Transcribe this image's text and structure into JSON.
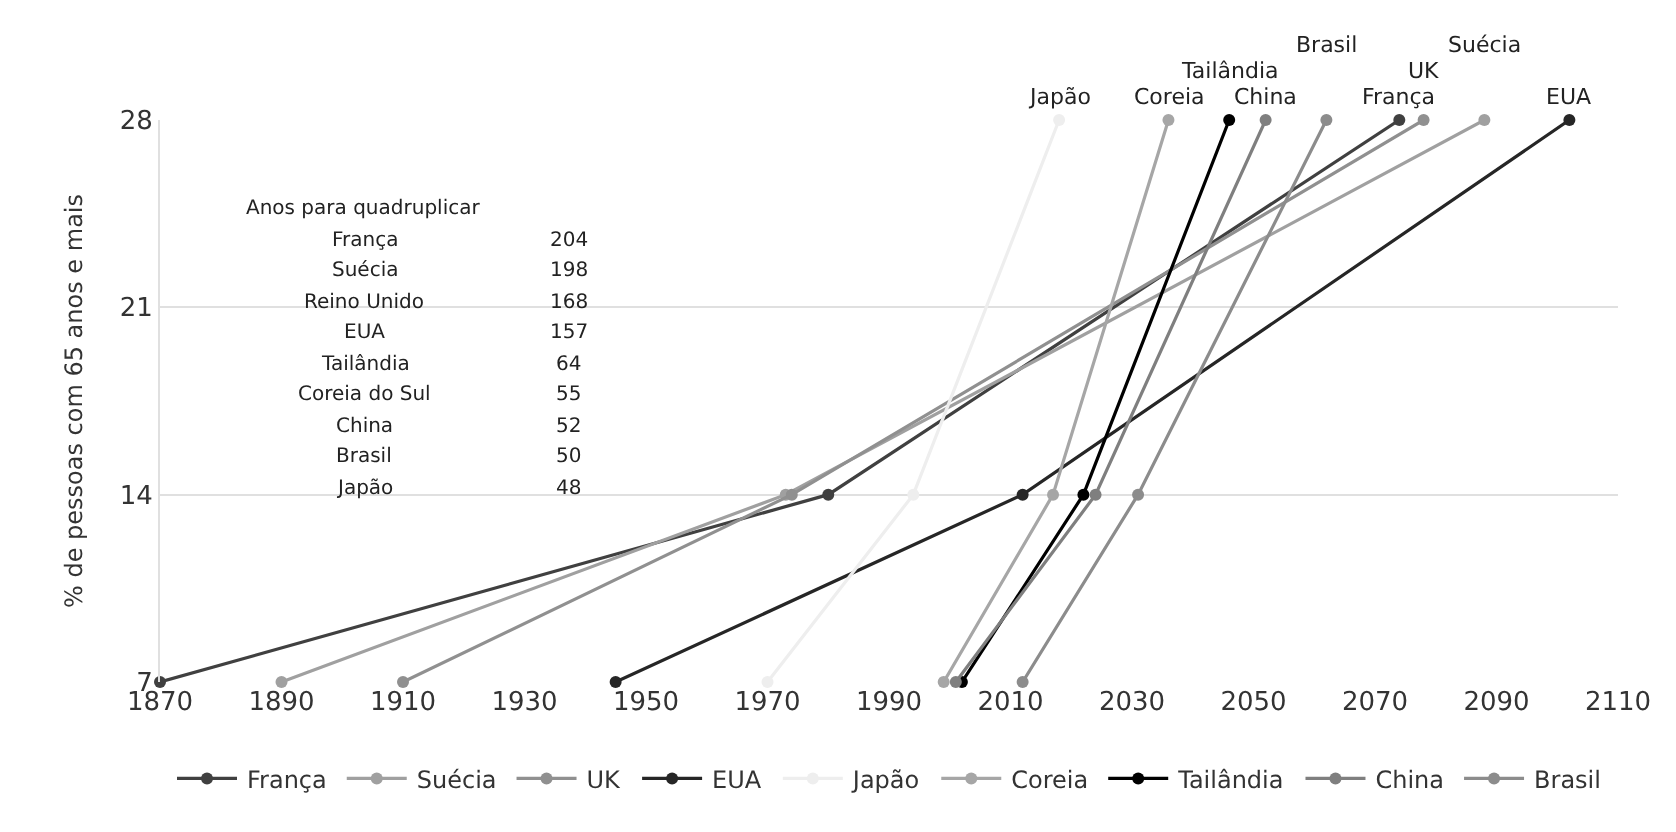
{
  "chart_data": {
    "type": "line",
    "ylabel": "% de pessoas com 65 anos e mais",
    "xlim": [
      1870,
      2110
    ],
    "xticks": [
      1870,
      1890,
      1910,
      1930,
      1950,
      1970,
      1990,
      2010,
      2030,
      2050,
      2070,
      2090,
      2110
    ],
    "ylim": [
      7,
      28
    ],
    "yticks": [
      7,
      14,
      21,
      28
    ],
    "grid": "y",
    "legend": "bottom",
    "marker": "circle",
    "line_style": "solid",
    "series": [
      {
        "name": "França",
        "color": "#404040",
        "x": [
          1870,
          1980,
          2074
        ],
        "values": [
          7,
          14,
          28
        ]
      },
      {
        "name": "Suécia",
        "color": "#a0a0a0",
        "x": [
          1890,
          1973,
          2088
        ],
        "values": [
          7,
          14,
          28
        ]
      },
      {
        "name": "UK",
        "color": "#909090",
        "x": [
          1910,
          1974,
          2078
        ],
        "values": [
          7,
          14,
          28
        ]
      },
      {
        "name": "EUA",
        "color": "#262626",
        "x": [
          1945,
          2012,
          2102
        ],
        "values": [
          7,
          14,
          28
        ]
      },
      {
        "name": "Japão",
        "color": "#eeeeee",
        "x": [
          1970,
          1994,
          2018
        ],
        "values": [
          7,
          14,
          28
        ]
      },
      {
        "name": "Coreia",
        "color": "#a6a6a6",
        "x": [
          1999,
          2017,
          2036
        ],
        "values": [
          7,
          14,
          28
        ]
      },
      {
        "name": "Tailândia",
        "color": "#000000",
        "x": [
          2002,
          2022,
          2046
        ],
        "values": [
          7,
          14,
          28
        ]
      },
      {
        "name": "China",
        "color": "#7f7f7f",
        "x": [
          2001,
          2024,
          2052
        ],
        "values": [
          7,
          14,
          28
        ]
      },
      {
        "name": "Brasil",
        "color": "#8c8c8c",
        "x": [
          2012,
          2031,
          2062
        ],
        "values": [
          7,
          14,
          28
        ]
      }
    ],
    "annotations": [
      {
        "text": "Japão",
        "x": 2018,
        "y": 28
      },
      {
        "text": "Coreia",
        "x": 2036,
        "y": 28
      },
      {
        "text": "Tailândia",
        "x": 2046,
        "y": 28
      },
      {
        "text": "China",
        "x": 2052,
        "y": 28
      },
      {
        "text": "Brasil",
        "x": 2062,
        "y": 28
      },
      {
        "text": "França",
        "x": 2074,
        "y": 28
      },
      {
        "text": "UK",
        "x": 2078,
        "y": 28
      },
      {
        "text": "Suécia",
        "x": 2088,
        "y": 28
      },
      {
        "text": "EUA",
        "x": 2102,
        "y": 28
      },
      "Anos para quadruplicar",
      "França",
      "204",
      "Suécia",
      "198",
      "Reino Unido",
      "168",
      "EUA",
      "157",
      "Tailândia",
      "64",
      "Coreia do Sul",
      "55",
      "China",
      "52",
      "Brasil",
      "50",
      "Japão",
      "48"
    ]
  }
}
